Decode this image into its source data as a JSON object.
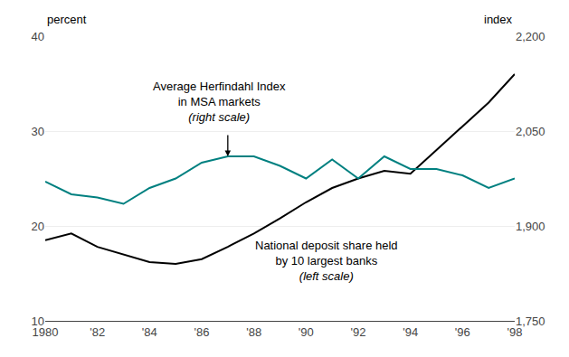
{
  "chart_data": {
    "type": "line",
    "x": [
      1980,
      1981,
      1982,
      1983,
      1984,
      1985,
      1986,
      1987,
      1988,
      1989,
      1990,
      1991,
      1992,
      1993,
      1994,
      1995,
      1996,
      1997,
      1998
    ],
    "series": [
      {
        "color": "#000000",
        "axis": "y",
        "values": [
          18.5,
          19.2,
          17.8,
          17.0,
          16.2,
          16.0,
          16.5,
          17.8,
          19.2,
          20.8,
          22.5,
          24.0,
          25.0,
          25.8,
          25.5,
          28.0,
          30.5,
          33.0,
          36.0
        ]
      },
      {
        "color": "#008080",
        "axis": "y2",
        "values": [
          1970,
          1950,
          1945,
          1935,
          1960,
          1975,
          2000,
          2010,
          2010,
          1995,
          1975,
          2005,
          1975,
          2010,
          1990,
          1990,
          1980,
          1960,
          1975
        ]
      }
    ],
    "xlim": [
      1980,
      1998
    ],
    "xticks": [
      1980,
      {
        "value": 1982,
        "label": "'82"
      },
      {
        "value": 1984,
        "label": "'84"
      },
      {
        "value": 1986,
        "label": "'86"
      },
      {
        "value": 1988,
        "label": "'88"
      },
      {
        "value": 1990,
        "label": "'90"
      },
      {
        "value": 1992,
        "label": "'92"
      },
      {
        "value": 1994,
        "label": "'94"
      },
      {
        "value": 1996,
        "label": "'96"
      },
      {
        "value": 1998,
        "label": "'98"
      }
    ],
    "ylim": [
      10,
      40
    ],
    "yticks": [
      10,
      20,
      30,
      40
    ],
    "y2lim": [
      1750,
      2200
    ],
    "y2ticks": [
      {
        "value": 1750,
        "label": "1,750"
      },
      {
        "value": 1900,
        "label": "1,900"
      },
      {
        "value": 2050,
        "label": "2,050"
      },
      {
        "value": 2200,
        "label": "2,200"
      }
    ],
    "ylabel": "percent",
    "y2label": "index",
    "annotations": [
      [
        "Average Herfindahl Index",
        "in MSA markets",
        "(right scale)"
      ],
      [
        "National deposit share held",
        "by 10 largest banks",
        "(left scale)"
      ]
    ],
    "grid": true
  }
}
